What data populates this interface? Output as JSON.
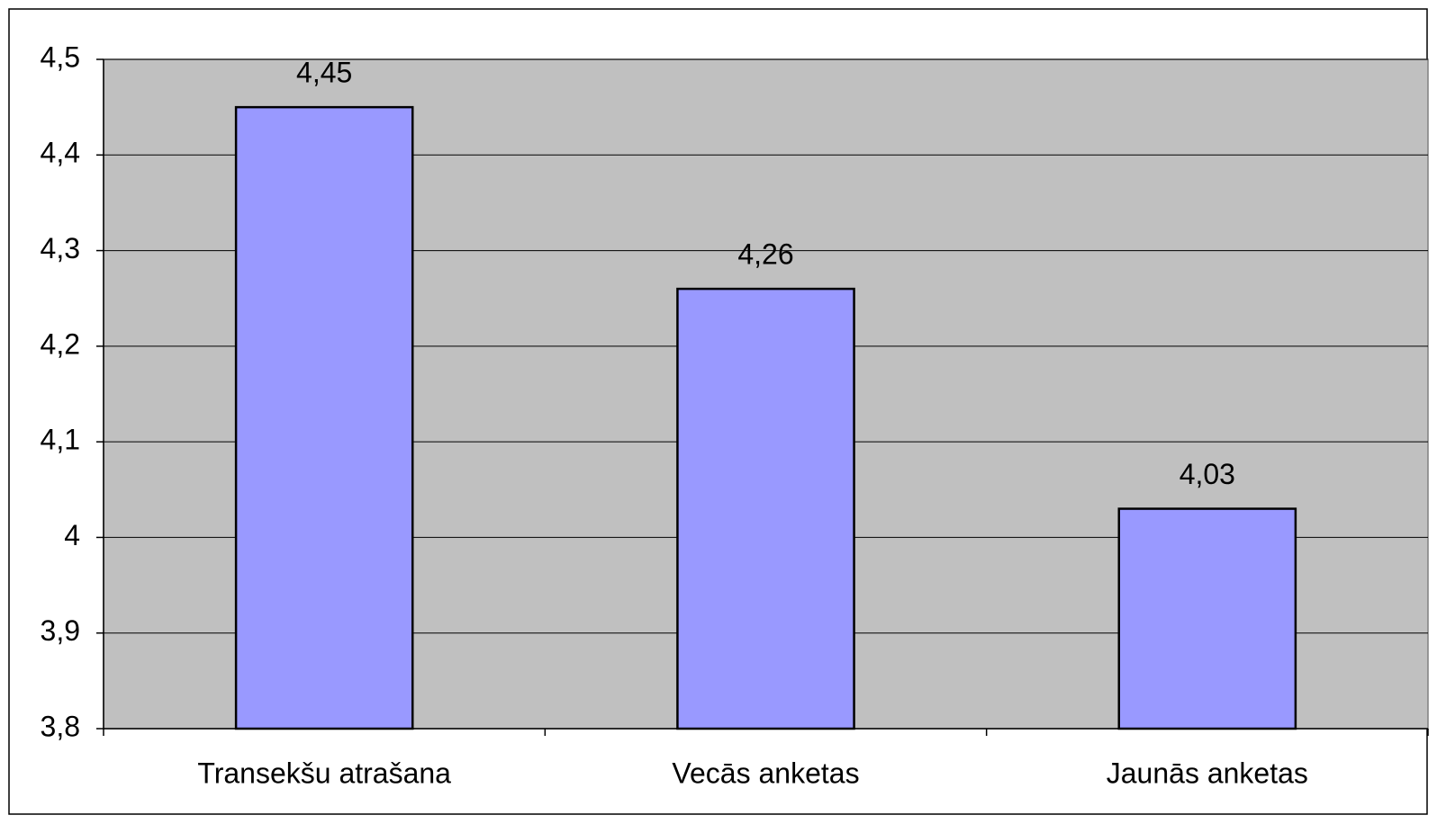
{
  "chart_data": {
    "type": "bar",
    "categories": [
      "Transekšu atrašana",
      "Vecās anketas",
      "Jaunās anketas"
    ],
    "values": [
      4.45,
      4.26,
      4.03
    ],
    "value_labels": [
      "4,45",
      "4,26",
      "4,03"
    ],
    "color": "#9999ff",
    "ylim": [
      3.8,
      4.5
    ],
    "yticks": [
      {
        "value": 3.8,
        "label": "3,8"
      },
      {
        "value": 3.9,
        "label": "3,9"
      },
      4,
      {
        "value": 4.1,
        "label": "4,1"
      },
      {
        "value": 4.2,
        "label": "4,2"
      },
      {
        "value": 4.3,
        "label": "4,3"
      },
      {
        "value": 4.4,
        "label": "4,4"
      },
      {
        "value": 4.5,
        "label": "4,5"
      }
    ],
    "grid": true
  }
}
